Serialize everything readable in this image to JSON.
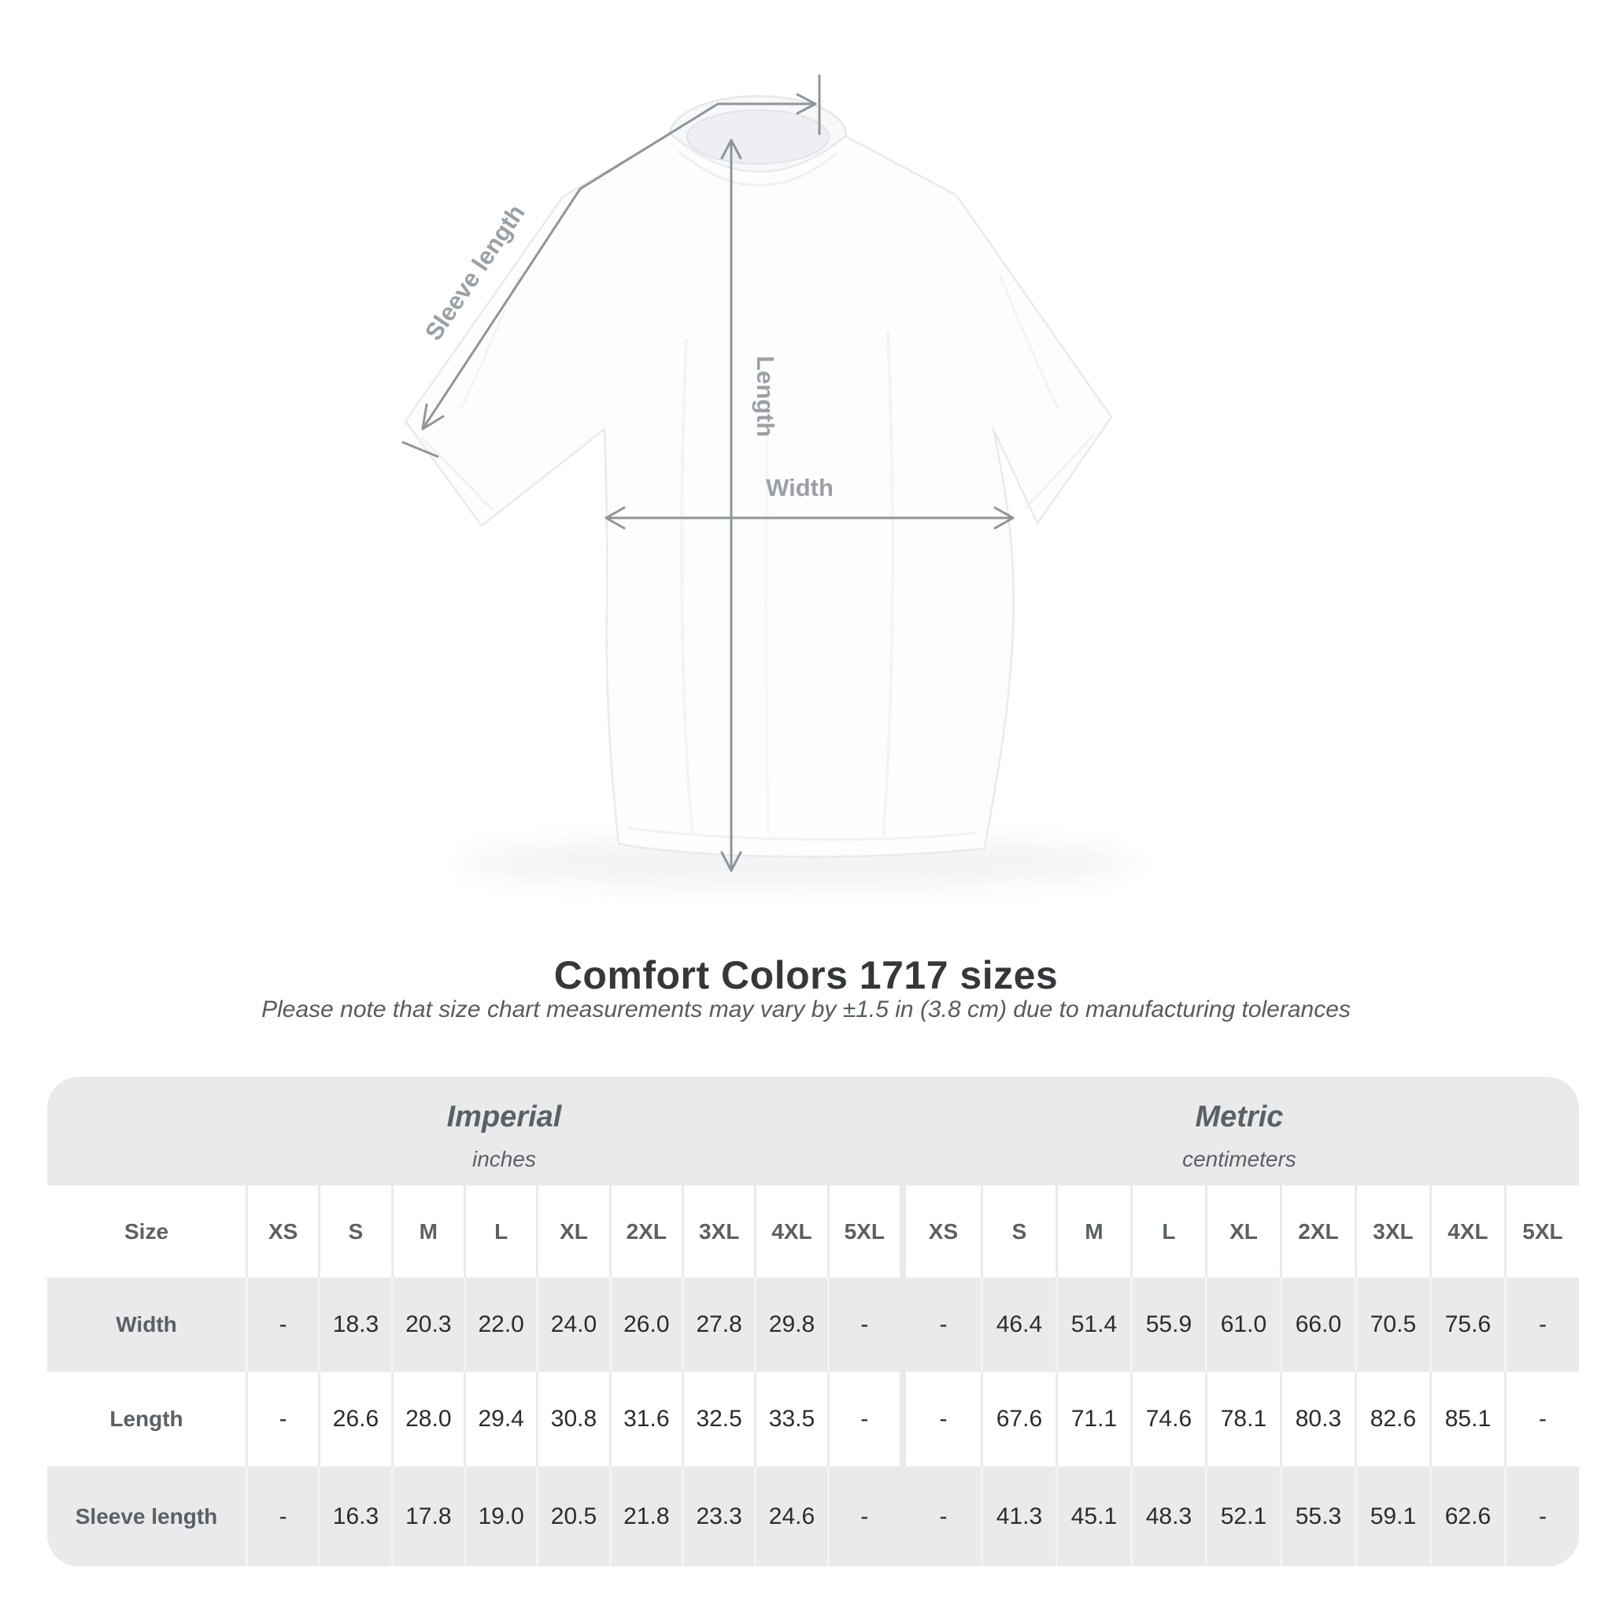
{
  "title": {
    "text": "Comfort Colors 1717 sizes"
  },
  "subtitle": {
    "text": "Please note that size chart measurements may vary by ±1.5 in (3.8 cm) due to manufacturing tolerances"
  },
  "diagram": {
    "labels": {
      "sleeve_length": "Sleeve length",
      "length": "Length",
      "width": "Width"
    },
    "line_color": "#8f959b",
    "label_color": "#9aa0a6"
  },
  "table": {
    "size_header": "Size",
    "unit_groups": [
      {
        "name": "Imperial",
        "unit": "inches"
      },
      {
        "name": "Metric",
        "unit": "centimeters"
      }
    ],
    "sizes": [
      "XS",
      "S",
      "M",
      "L",
      "XL",
      "2XL",
      "3XL",
      "4XL",
      "5XL"
    ],
    "rows": [
      {
        "label": "Width",
        "imperial": [
          "-",
          "18.3",
          "20.3",
          "22.0",
          "24.0",
          "26.0",
          "27.8",
          "29.8",
          "-"
        ],
        "metric": [
          "-",
          "46.4",
          "51.4",
          "55.9",
          "61.0",
          "66.0",
          "70.5",
          "75.6",
          "-"
        ]
      },
      {
        "label": "Length",
        "imperial": [
          "-",
          "26.6",
          "28.0",
          "29.4",
          "30.8",
          "31.6",
          "32.5",
          "33.5",
          "-"
        ],
        "metric": [
          "-",
          "67.6",
          "71.1",
          "74.6",
          "78.1",
          "80.3",
          "82.6",
          "85.1",
          "-"
        ]
      },
      {
        "label": "Sleeve length",
        "imperial": [
          "-",
          "16.3",
          "17.8",
          "19.0",
          "20.5",
          "21.8",
          "23.3",
          "24.6",
          "-"
        ],
        "metric": [
          "-",
          "41.3",
          "45.1",
          "48.3",
          "52.1",
          "55.3",
          "59.1",
          "62.6",
          "-"
        ]
      }
    ],
    "colors": {
      "container_bg": "#e9eaec",
      "cell_white": "#ffffff",
      "header_text": "#5b6065",
      "value_text": "#2a2d30"
    }
  }
}
